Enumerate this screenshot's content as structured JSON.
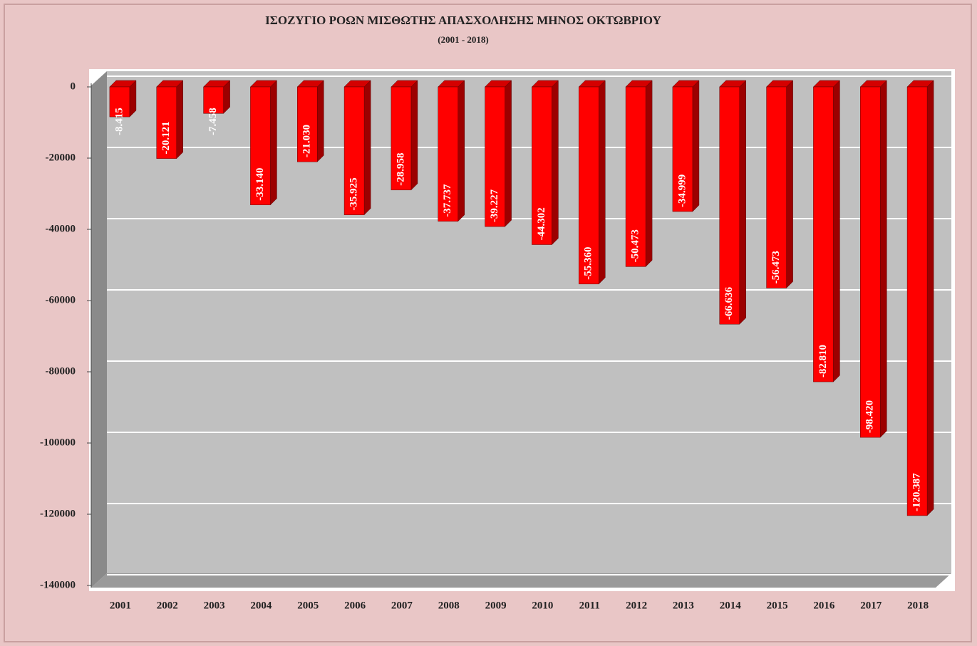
{
  "chart_data": {
    "type": "bar3d",
    "title": "ΙΣΟΖΥΓΙΟ ΡΟΩΝ ΜΙΣΘΩΤΗΣ ΑΠΑΣΧΟΛΗΣΗΣ ΜΗΝΟΣ  ΟΚΤΩΒΡΙΟΥ",
    "subtitle": "(2001 - 2018)",
    "categories": [
      "2001",
      "2002",
      "2003",
      "2004",
      "2005",
      "2006",
      "2007",
      "2008",
      "2009",
      "2010",
      "2011",
      "2012",
      "2013",
      "2014",
      "2015",
      "2016",
      "2017",
      "2018"
    ],
    "values": [
      -8415,
      -20121,
      -7458,
      -33140,
      -21030,
      -35925,
      -28958,
      -37737,
      -39227,
      -44302,
      -55360,
      -50473,
      -34999,
      -66636,
      -56473,
      -82810,
      -98420,
      -120387
    ],
    "value_labels": [
      "-8.415",
      "-20.121",
      "-7.458",
      "-33.140",
      "-21.030",
      "-35.925",
      "-28.958",
      "-37.737",
      "-39.227",
      "-44.302",
      "-55.360",
      "-50.473",
      "-34.999",
      "-66.636",
      "-56.473",
      "-82.810",
      "-98.420",
      "-120.387"
    ],
    "color": "#ff0000",
    "ylim": [
      -140000,
      0
    ],
    "yticks": [
      0,
      -20000,
      -40000,
      -60000,
      -80000,
      -100000,
      -120000,
      -140000
    ],
    "grid": true
  }
}
